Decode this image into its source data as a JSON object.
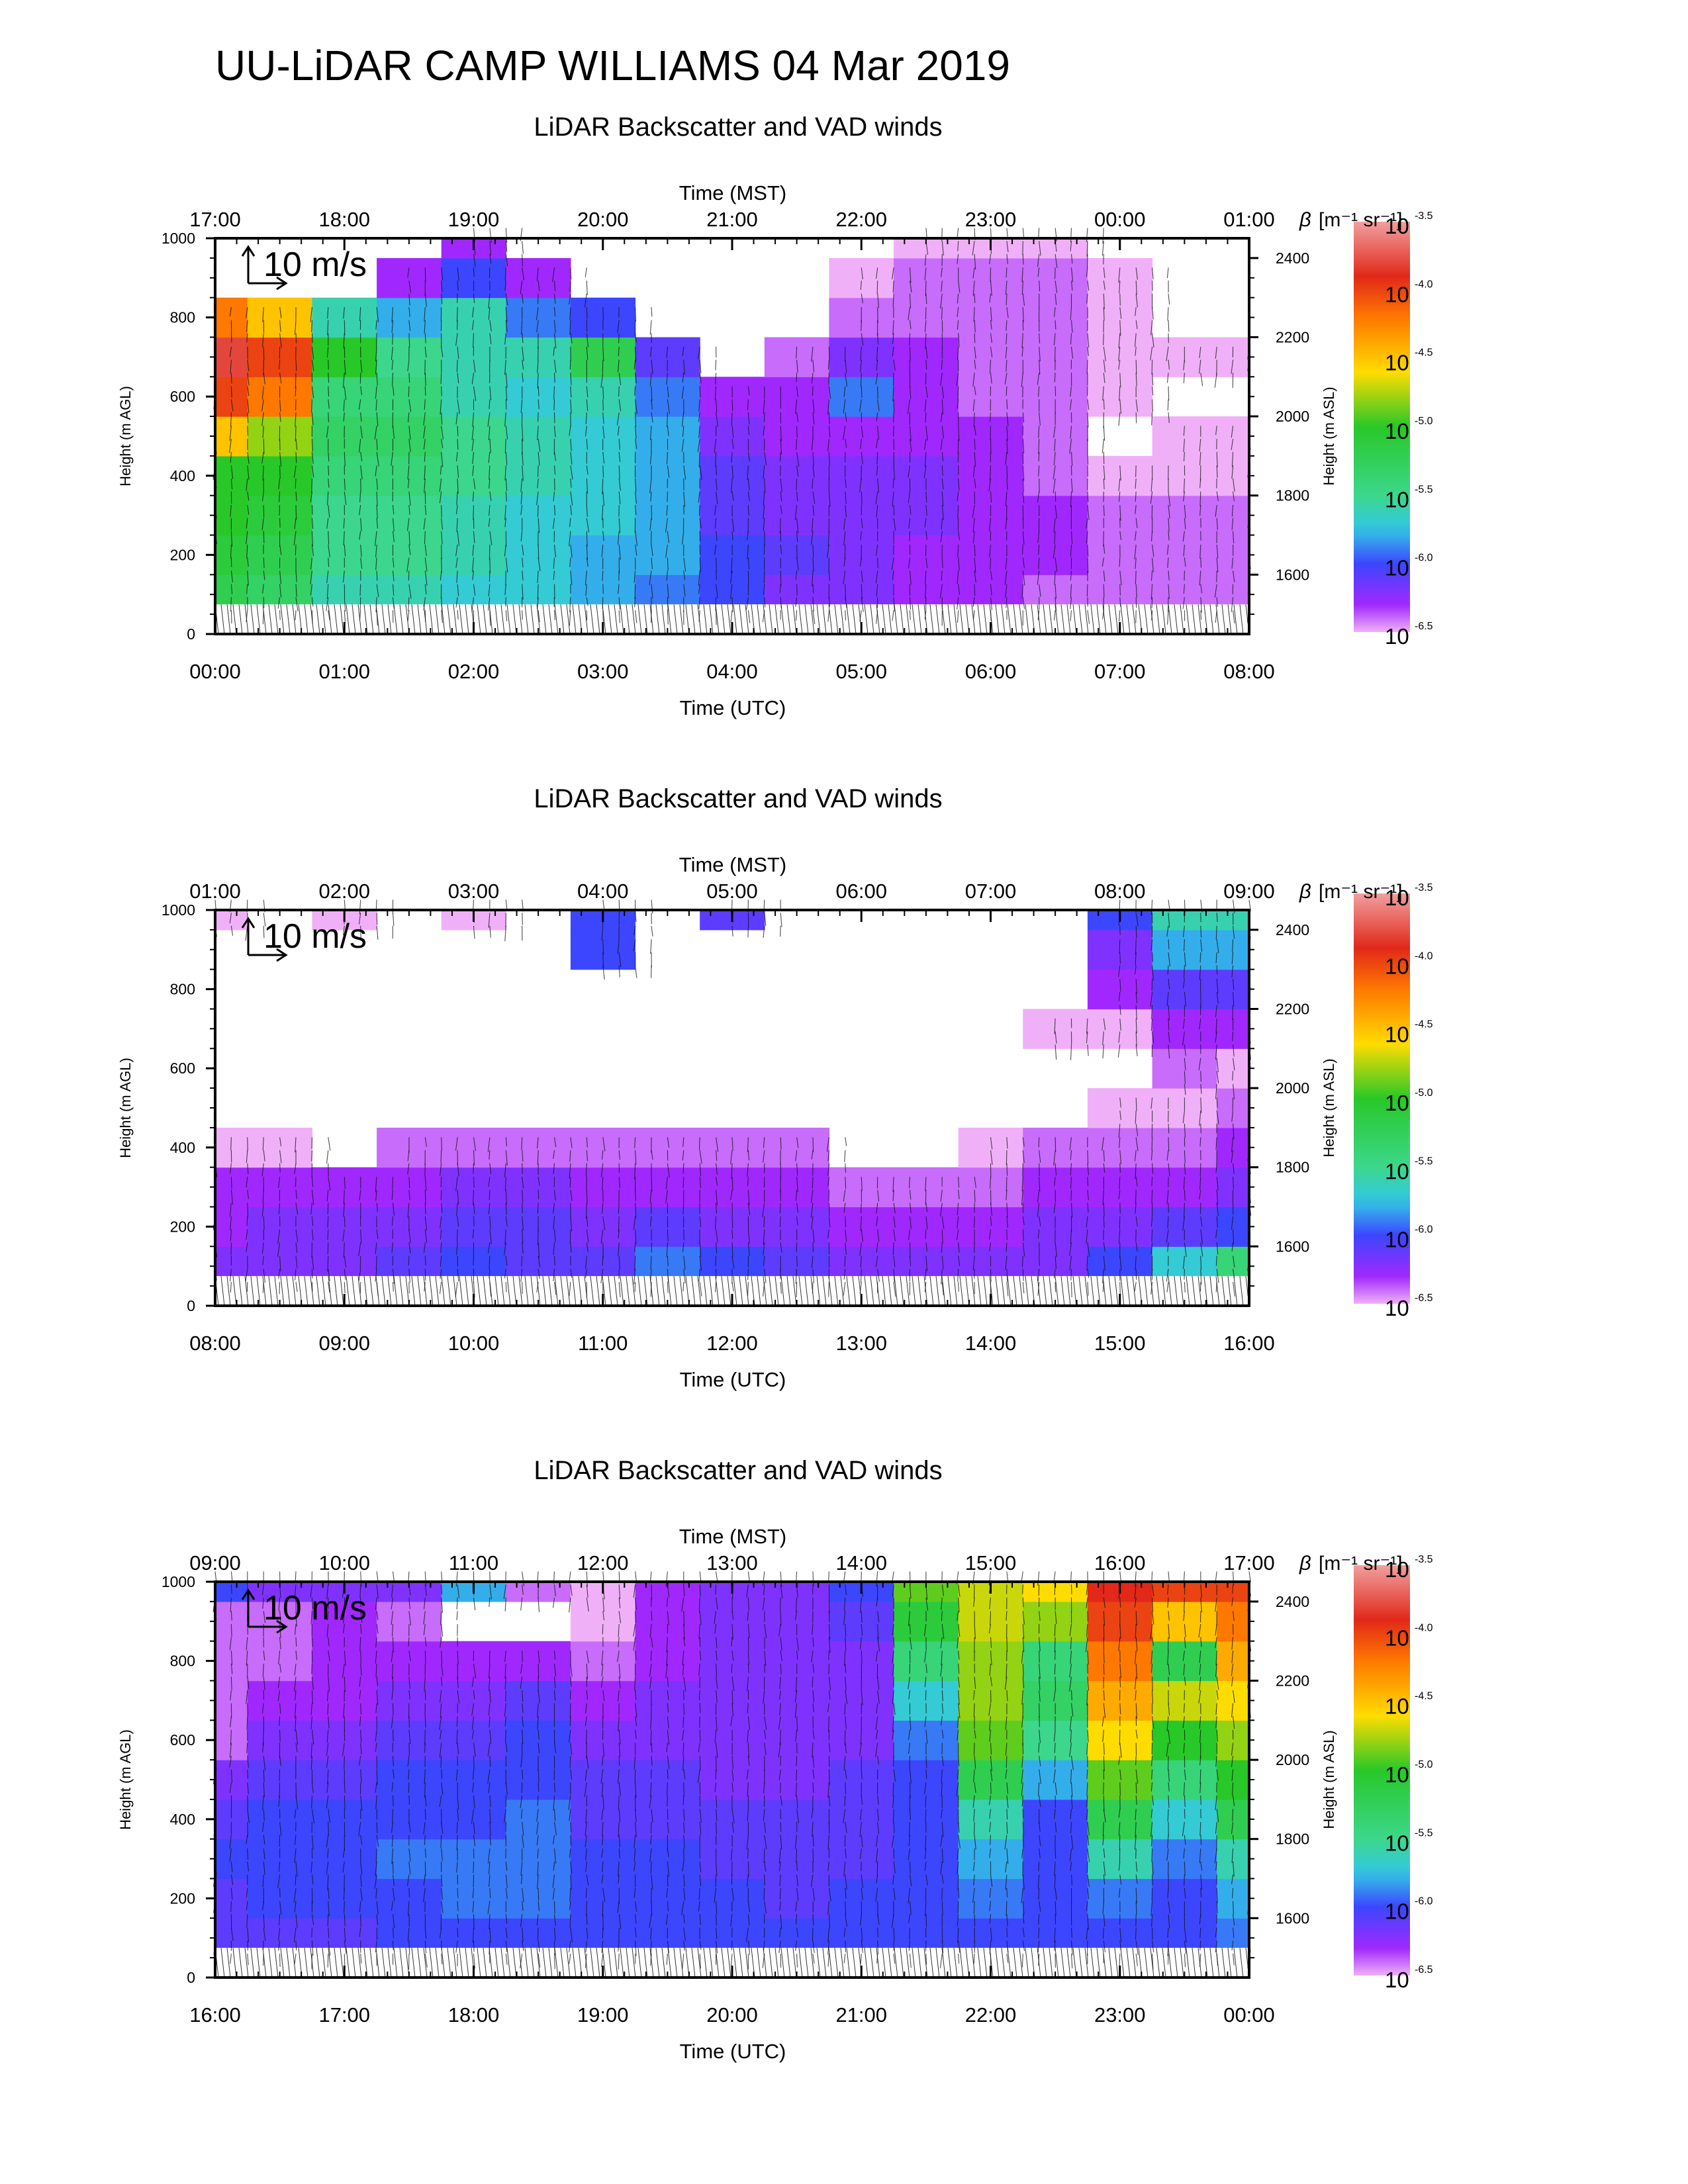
{
  "title": "UU-LiDAR CAMP WILLIAMS 04 Mar 2019",
  "common": {
    "panel_title": "LiDAR Backscatter and VAD winds",
    "top_axis_label": "Time (MST)",
    "bottom_axis_label": "Time (UTC)",
    "left_axis_label": "Height (m AGL)",
    "right_axis_label": "Height (m ASL)",
    "colorbar_label_symbol": "β",
    "colorbar_label_units": "[m⁻¹ sr⁻¹]",
    "wind_scale_label": "10 m/s",
    "left_ticks": [
      "0",
      "200",
      "400",
      "600",
      "800",
      "1000"
    ],
    "right_ticks": [
      "1600",
      "1800",
      "2000",
      "2200",
      "2400"
    ],
    "colorbar_ticks": [
      {
        "base": "10",
        "exp": "-3.5"
      },
      {
        "base": "10",
        "exp": "-4.0"
      },
      {
        "base": "10",
        "exp": "-4.5"
      },
      {
        "base": "10",
        "exp": "-5.0"
      },
      {
        "base": "10",
        "exp": "-5.5"
      },
      {
        "base": "10",
        "exp": "-6.0"
      },
      {
        "base": "10",
        "exp": "-6.5"
      }
    ],
    "colorbar_colors": [
      "#f0a0a0",
      "#e03020",
      "#ff8000",
      "#ffe000",
      "#30d030",
      "#30d0d0",
      "#3050ff",
      "#8020ff",
      "#f0b0f8"
    ]
  },
  "chart_data": [
    {
      "type": "heatmap",
      "title": "LiDAR Backscatter and VAD winds",
      "xlabel": "Time (UTC)",
      "x2label": "Time (MST)",
      "ylabel": "Height (m AGL)",
      "y2label": "Height (m ASL)",
      "x_ticks_utc": [
        "00:00",
        "01:00",
        "02:00",
        "03:00",
        "04:00",
        "05:00",
        "06:00",
        "07:00",
        "08:00"
      ],
      "x_ticks_mst": [
        "17:00",
        "18:00",
        "19:00",
        "20:00",
        "21:00",
        "22:00",
        "23:00",
        "00:00",
        "01:00"
      ],
      "ylim": [
        0,
        1000
      ],
      "y2lim": [
        1450,
        2450
      ],
      "colorbar_log10_range": [
        -6.5,
        -3.5
      ],
      "heights": [
        100,
        200,
        300,
        400,
        500,
        600,
        700,
        800,
        900,
        1000
      ],
      "hours_utc": [
        0,
        0.5,
        1,
        1.5,
        2,
        2.5,
        3,
        3.5,
        4,
        4.5,
        5,
        5.5,
        6,
        6.5,
        7,
        7.5,
        8
      ],
      "log_beta_profiles": [
        [
          -5.2,
          -5.1,
          -5.0,
          -5.0,
          -4.5,
          -4.0,
          -3.8,
          -4.2,
          null,
          null
        ],
        [
          -5.3,
          -5.2,
          -5.1,
          -5.0,
          -4.8,
          -4.2,
          -4.0,
          -4.5,
          null,
          null
        ],
        [
          -5.6,
          -5.5,
          -5.5,
          -5.4,
          -5.3,
          -5.4,
          -5.0,
          -5.6,
          null,
          null
        ],
        [
          -5.6,
          -5.5,
          -5.5,
          -5.4,
          -5.3,
          -5.4,
          -5.5,
          -5.8,
          -6.3,
          null
        ],
        [
          -5.7,
          -5.6,
          -5.6,
          -5.5,
          -5.5,
          -5.6,
          -5.6,
          -5.6,
          -6.0,
          -6.3
        ],
        [
          -5.7,
          -5.7,
          -5.7,
          -5.6,
          -5.6,
          -5.7,
          -5.6,
          -5.9,
          -6.3,
          null
        ],
        [
          -5.8,
          -5.8,
          -5.7,
          -5.7,
          -5.7,
          -5.6,
          -5.2,
          -6.0,
          null,
          null
        ],
        [
          -5.9,
          -5.8,
          -5.8,
          -5.8,
          -5.8,
          -5.9,
          -6.1,
          null,
          null,
          null
        ],
        [
          -6.0,
          -6.0,
          -6.1,
          -6.1,
          -6.2,
          -6.3,
          null,
          null,
          null,
          null
        ],
        [
          -6.2,
          -6.1,
          -6.2,
          -6.2,
          -6.3,
          -6.3,
          -6.4,
          null,
          null,
          null
        ],
        [
          -6.2,
          -6.2,
          -6.2,
          -6.2,
          -6.3,
          -5.9,
          -6.2,
          -6.4,
          -6.5,
          null
        ],
        [
          -6.3,
          -6.3,
          -6.2,
          -6.2,
          -6.3,
          -6.3,
          -6.3,
          -6.4,
          -6.4,
          -6.5
        ],
        [
          -6.3,
          -6.3,
          -6.3,
          -6.3,
          -6.3,
          -6.4,
          -6.4,
          -6.4,
          -6.4,
          -6.5
        ],
        [
          -6.4,
          -6.3,
          -6.3,
          -6.4,
          -6.4,
          -6.4,
          -6.4,
          -6.4,
          -6.4,
          -6.5
        ],
        [
          -6.4,
          -6.4,
          -6.4,
          -6.5,
          null,
          -6.5,
          -6.5,
          -6.5,
          -6.5,
          null
        ],
        [
          -6.4,
          -6.4,
          -6.4,
          -6.5,
          -6.5,
          null,
          -6.5,
          null,
          null,
          null
        ],
        [
          -6.4,
          -6.4,
          -6.4,
          -6.5,
          -6.5,
          null,
          -6.5,
          null,
          null,
          null
        ]
      ]
    },
    {
      "type": "heatmap",
      "title": "LiDAR Backscatter and VAD winds",
      "xlabel": "Time (UTC)",
      "x2label": "Time (MST)",
      "ylabel": "Height (m AGL)",
      "y2label": "Height (m ASL)",
      "x_ticks_utc": [
        "08:00",
        "09:00",
        "10:00",
        "11:00",
        "12:00",
        "13:00",
        "14:00",
        "15:00",
        "16:00"
      ],
      "x_ticks_mst": [
        "01:00",
        "02:00",
        "03:00",
        "04:00",
        "05:00",
        "06:00",
        "07:00",
        "08:00",
        "09:00"
      ],
      "ylim": [
        0,
        1000
      ],
      "y2lim": [
        1450,
        2450
      ],
      "colorbar_log10_range": [
        -6.5,
        -3.5
      ],
      "heights": [
        100,
        200,
        300,
        400,
        500,
        600,
        700,
        800,
        900,
        1000
      ],
      "hours_utc": [
        8,
        8.5,
        9,
        9.5,
        10,
        10.5,
        11,
        11.5,
        12,
        12.5,
        13,
        13.5,
        14,
        14.5,
        15,
        15.5,
        16
      ],
      "log_beta_profiles": [
        [
          -6.2,
          -6.3,
          -6.3,
          -6.5,
          null,
          null,
          null,
          null,
          null,
          -6.5
        ],
        [
          -6.2,
          -6.2,
          -6.3,
          -6.5,
          null,
          null,
          null,
          null,
          null,
          null
        ],
        [
          -6.2,
          -6.2,
          -6.3,
          null,
          null,
          null,
          null,
          null,
          null,
          -6.5
        ],
        [
          -6.1,
          -6.2,
          -6.3,
          -6.4,
          null,
          null,
          null,
          null,
          null,
          null
        ],
        [
          -6.0,
          -6.1,
          -6.2,
          -6.4,
          null,
          null,
          null,
          null,
          null,
          -6.5
        ],
        [
          -6.1,
          -6.1,
          -6.2,
          -6.4,
          null,
          null,
          null,
          null,
          null,
          null
        ],
        [
          -6.1,
          -6.2,
          -6.3,
          -6.4,
          null,
          null,
          null,
          null,
          -6.0,
          -6.0
        ],
        [
          -5.9,
          -6.1,
          -6.3,
          -6.4,
          null,
          null,
          null,
          null,
          null,
          null
        ],
        [
          -6.0,
          -6.2,
          -6.3,
          -6.4,
          null,
          null,
          null,
          null,
          null,
          -6.1
        ],
        [
          -6.1,
          -6.2,
          -6.3,
          -6.4,
          null,
          null,
          null,
          null,
          null,
          null
        ],
        [
          -6.2,
          -6.3,
          -6.4,
          null,
          null,
          null,
          null,
          null,
          null,
          null
        ],
        [
          -6.2,
          -6.3,
          -6.4,
          null,
          null,
          null,
          null,
          null,
          null,
          null
        ],
        [
          -6.2,
          -6.3,
          -6.4,
          -6.5,
          null,
          null,
          null,
          null,
          null,
          null
        ],
        [
          -6.2,
          -6.2,
          -6.3,
          -6.4,
          null,
          null,
          -6.5,
          null,
          null,
          null
        ],
        [
          -6.0,
          -6.2,
          -6.3,
          -6.4,
          -6.5,
          null,
          -6.5,
          -6.3,
          -6.2,
          -6.0
        ],
        [
          -5.7,
          -6.1,
          -6.3,
          -6.4,
          -6.5,
          -6.4,
          -6.3,
          -6.1,
          -5.8,
          -5.6
        ],
        [
          -5.4,
          -6.0,
          -6.2,
          -6.3,
          -6.4,
          -6.5,
          -6.3,
          -6.1,
          -5.8,
          -5.6
        ]
      ]
    },
    {
      "type": "heatmap",
      "title": "LiDAR Backscatter and VAD winds",
      "xlabel": "Time (UTC)",
      "x2label": "Time (MST)",
      "ylabel": "Height (m AGL)",
      "y2label": "Height (m ASL)",
      "x_ticks_utc": [
        "16:00",
        "17:00",
        "18:00",
        "19:00",
        "20:00",
        "21:00",
        "22:00",
        "23:00",
        "00:00"
      ],
      "x_ticks_mst": [
        "09:00",
        "10:00",
        "11:00",
        "12:00",
        "13:00",
        "14:00",
        "15:00",
        "16:00",
        "17:00"
      ],
      "ylim": [
        0,
        1000
      ],
      "y2lim": [
        1450,
        2450
      ],
      "colorbar_log10_range": [
        -6.5,
        -3.5
      ],
      "heights": [
        100,
        200,
        300,
        400,
        500,
        600,
        700,
        800,
        900,
        1000
      ],
      "hours_utc": [
        16,
        16.5,
        17,
        17.5,
        18,
        18.5,
        19,
        19.5,
        20,
        20.5,
        21,
        21.5,
        22,
        22.5,
        23,
        23.5,
        24
      ],
      "log_beta_profiles": [
        [
          -6.1,
          -6.1,
          -6.0,
          -6.1,
          -6.2,
          -6.4,
          -6.4,
          -6.4,
          -6.4,
          -6.0
        ],
        [
          -6.1,
          -6.0,
          -6.0,
          -6.0,
          -6.1,
          -6.2,
          -6.3,
          -6.4,
          -6.4,
          -6.2
        ],
        [
          -6.1,
          -6.0,
          -6.0,
          -6.0,
          -6.1,
          -6.2,
          -6.3,
          -6.3,
          -6.3,
          -6.2
        ],
        [
          -6.0,
          -6.0,
          -5.9,
          -6.0,
          -6.0,
          -6.1,
          -6.2,
          -6.3,
          -6.4,
          -6.2
        ],
        [
          -6.0,
          -5.9,
          -5.9,
          -6.0,
          -6.0,
          -6.1,
          -6.2,
          -6.3,
          null,
          -5.8
        ],
        [
          -6.0,
          -5.9,
          -5.9,
          -5.9,
          -6.0,
          -6.0,
          -6.1,
          -6.3,
          null,
          -6.4
        ],
        [
          -6.0,
          -6.0,
          -6.0,
          -6.1,
          -6.1,
          -6.2,
          -6.3,
          -6.4,
          -6.5,
          -6.5
        ],
        [
          -6.0,
          -6.0,
          -6.0,
          -6.1,
          -6.1,
          -6.2,
          -6.2,
          -6.3,
          -6.3,
          -6.3
        ],
        [
          -6.0,
          -6.0,
          -6.1,
          -6.1,
          -6.2,
          -6.2,
          -6.2,
          -6.2,
          -6.2,
          -6.2
        ],
        [
          -6.0,
          -6.1,
          -6.1,
          -6.1,
          -6.2,
          -6.2,
          -6.2,
          -6.2,
          -6.2,
          -6.2
        ],
        [
          -6.0,
          -6.0,
          -6.1,
          -6.1,
          -6.1,
          -6.2,
          -6.2,
          -6.2,
          -6.1,
          -6.0
        ],
        [
          -6.0,
          -6.0,
          -6.0,
          -6.0,
          -6.0,
          -5.9,
          -5.7,
          -5.4,
          -5.1,
          -4.9
        ],
        [
          -6.0,
          -5.9,
          -5.8,
          -5.6,
          -5.2,
          -4.9,
          -4.8,
          -4.8,
          -4.7,
          -4.7
        ],
        [
          -6.0,
          -6.0,
          -6.0,
          -6.0,
          -5.8,
          -5.5,
          -5.3,
          -5.4,
          -4.8,
          -4.6
        ],
        [
          -6.0,
          -5.9,
          -5.6,
          -5.2,
          -4.9,
          -4.6,
          -4.4,
          -4.2,
          -4.0,
          -3.9
        ],
        [
          -6.0,
          -6.0,
          -5.9,
          -5.7,
          -5.4,
          -5.0,
          -4.7,
          -5.2,
          -4.5,
          -4.0
        ],
        [
          -5.9,
          -5.8,
          -5.6,
          -5.2,
          -5.0,
          -4.8,
          -4.6,
          -4.4,
          -4.2,
          -4.0
        ]
      ]
    }
  ]
}
